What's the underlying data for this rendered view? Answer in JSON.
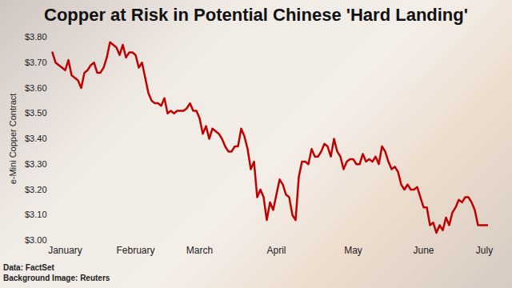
{
  "chart_data": {
    "type": "line",
    "title": "Copper at Risk in Potential Chinese 'Hard Landing'",
    "y_label": "e-Mini Copper Contract",
    "annotations": [
      "Data: FactSet",
      "Background Image: Reuters"
    ],
    "color": "#c00000",
    "grid": false,
    "ylim": [
      3.0,
      3.8
    ],
    "yticks": [
      {
        "value": 3.0,
        "label": "$3.00"
      },
      {
        "value": 3.1,
        "label": "$3.10"
      },
      {
        "value": 3.2,
        "label": "$3.20"
      },
      {
        "value": 3.3,
        "label": "$3.30"
      },
      {
        "value": 3.4,
        "label": "$3.40"
      },
      {
        "value": 3.5,
        "label": "$3.50"
      },
      {
        "value": 3.6,
        "label": "$3.60"
      },
      {
        "value": 3.7,
        "label": "$3.70"
      },
      {
        "value": 3.8,
        "label": "$3.80"
      }
    ],
    "categories": [
      null,
      null,
      null,
      null,
      "January",
      null,
      null,
      null,
      null,
      null,
      null,
      null,
      null,
      null,
      null,
      null,
      null,
      null,
      null,
      null,
      null,
      null,
      null,
      null,
      null,
      null,
      "February",
      null,
      null,
      null,
      null,
      null,
      null,
      null,
      null,
      null,
      null,
      null,
      null,
      null,
      null,
      null,
      null,
      null,
      null,
      null,
      "March",
      null,
      null,
      null,
      null,
      null,
      null,
      null,
      null,
      null,
      null,
      null,
      null,
      null,
      null,
      null,
      null,
      null,
      null,
      null,
      null,
      null,
      null,
      null,
      "April",
      null,
      null,
      null,
      null,
      null,
      null,
      null,
      null,
      null,
      null,
      null,
      null,
      null,
      null,
      null,
      null,
      null,
      null,
      null,
      null,
      null,
      null,
      null,
      "May",
      null,
      null,
      null,
      null,
      null,
      null,
      null,
      null,
      null,
      null,
      null,
      null,
      null,
      null,
      null,
      null,
      null,
      null,
      null,
      null,
      null,
      "June",
      null,
      null,
      null,
      null,
      null,
      null,
      null,
      null,
      null,
      null,
      null,
      null,
      null,
      null,
      null,
      null,
      null,
      null,
      "July",
      null
    ],
    "values": [
      3.74,
      3.7,
      3.69,
      3.68,
      3.67,
      3.71,
      3.65,
      3.64,
      3.63,
      3.6,
      3.66,
      3.67,
      3.69,
      3.7,
      3.66,
      3.66,
      3.68,
      3.72,
      3.78,
      3.77,
      3.76,
      3.73,
      3.77,
      3.72,
      3.74,
      3.74,
      3.73,
      3.68,
      3.7,
      3.64,
      3.58,
      3.55,
      3.54,
      3.54,
      3.53,
      3.56,
      3.5,
      3.51,
      3.5,
      3.51,
      3.51,
      3.51,
      3.52,
      3.54,
      3.51,
      3.51,
      3.48,
      3.42,
      3.45,
      3.4,
      3.44,
      3.43,
      3.42,
      3.4,
      3.37,
      3.35,
      3.35,
      3.37,
      3.37,
      3.44,
      3.41,
      3.36,
      3.28,
      3.31,
      3.17,
      3.2,
      3.17,
      3.08,
      3.15,
      3.12,
      3.18,
      3.24,
      3.22,
      3.18,
      3.17,
      3.1,
      3.08,
      3.25,
      3.31,
      3.31,
      3.3,
      3.36,
      3.33,
      3.33,
      3.35,
      3.38,
      3.37,
      3.33,
      3.4,
      3.35,
      3.33,
      3.28,
      3.31,
      3.32,
      3.32,
      3.3,
      3.3,
      3.34,
      3.31,
      3.32,
      3.31,
      3.33,
      3.3,
      3.37,
      3.35,
      3.31,
      3.28,
      3.29,
      3.27,
      3.22,
      3.2,
      3.22,
      3.2,
      3.2,
      3.21,
      3.17,
      3.13,
      3.13,
      3.06,
      3.07,
      3.03,
      3.06,
      3.04,
      3.09,
      3.06,
      3.11,
      3.13,
      3.16,
      3.15,
      3.17,
      3.17,
      3.15,
      3.12,
      3.06,
      3.06,
      3.06,
      3.06
    ]
  }
}
